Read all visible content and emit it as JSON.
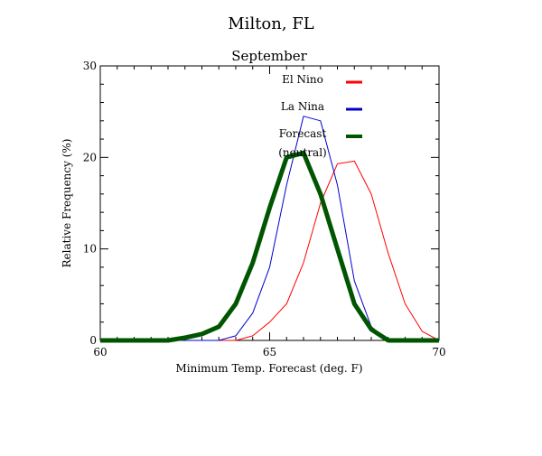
{
  "chart_data": {
    "type": "line",
    "title": "Milton, FL",
    "subtitle": "September",
    "xlabel": "Minimum Temp. Forecast (deg. F)",
    "ylabel": "Relative Frequency (%)",
    "xlim": [
      60,
      70
    ],
    "ylim": [
      0,
      30
    ],
    "x_ticks": [
      60,
      65,
      70
    ],
    "y_ticks": [
      0,
      10,
      20,
      30
    ],
    "grid": false,
    "legend_position": "top-right",
    "series": [
      {
        "name": "El Nino",
        "color": "#ff0000",
        "x": [
          60,
          60.5,
          61,
          61.5,
          62,
          62.5,
          63,
          63.5,
          64,
          64.5,
          65,
          65.5,
          66,
          66.5,
          67,
          67.5,
          68,
          68.5,
          69,
          69.5,
          70
        ],
        "y": [
          0,
          0,
          0,
          0,
          0,
          0,
          0,
          0,
          0,
          0.5,
          2,
          4,
          8.5,
          15,
          19.3,
          19.6,
          16,
          9.5,
          4,
          1,
          0
        ]
      },
      {
        "name": "La Nina",
        "color": "#0000cc",
        "x": [
          60,
          60.5,
          61,
          61.5,
          62,
          62.5,
          63,
          63.5,
          64,
          64.5,
          65,
          65.5,
          66,
          66.5,
          67,
          67.5,
          68,
          68.5,
          69,
          69.5,
          70
        ],
        "y": [
          0,
          0,
          0,
          0,
          0,
          0,
          0,
          0,
          0.5,
          3,
          8,
          17,
          24.5,
          24,
          17,
          6.5,
          1.5,
          0,
          0,
          0,
          0
        ]
      },
      {
        "name": "Forecast\n(neutral)",
        "label_line1": "Forecast",
        "label_line2": "(neutral)",
        "color": "#005500",
        "x": [
          60,
          60.5,
          61,
          61.5,
          62,
          62.5,
          63,
          63.5,
          64,
          64.5,
          65,
          65.5,
          66,
          66.5,
          67,
          67.5,
          68,
          68.5,
          69,
          69.5,
          70
        ],
        "y": [
          0,
          0,
          0,
          0,
          0,
          0.3,
          0.7,
          1.5,
          4,
          8.5,
          14.5,
          20,
          20.5,
          16,
          10,
          4,
          1.2,
          0,
          0,
          0,
          0
        ]
      }
    ]
  }
}
